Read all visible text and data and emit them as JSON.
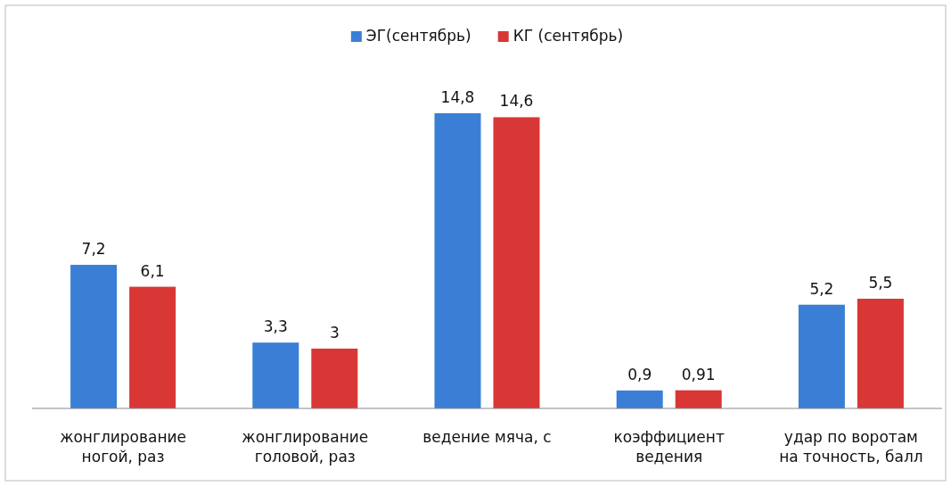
{
  "chart_data": {
    "type": "bar",
    "categories": [
      "жонглирование ногой, раз",
      "жонглирование головой, раз",
      "ведение мяча, с",
      "коэффициент ведения",
      "удар по воротам на точность, балл"
    ],
    "series": [
      {
        "name": "ЭГ(сентябрь)",
        "color": "#3a7fd5",
        "values": [
          7.2,
          3.3,
          14.8,
          0.9,
          5.2
        ],
        "value_labels": [
          "7,2",
          "3,3",
          "14,8",
          "0,9",
          "5,2"
        ]
      },
      {
        "name": "КГ (сентябрь)",
        "color": "#d93636",
        "values": [
          6.1,
          3,
          14.6,
          0.91,
          5.5
        ],
        "value_labels": [
          "6,1",
          "3",
          "14,6",
          "0,91",
          "5,5"
        ]
      }
    ],
    "legend": "top"
  }
}
